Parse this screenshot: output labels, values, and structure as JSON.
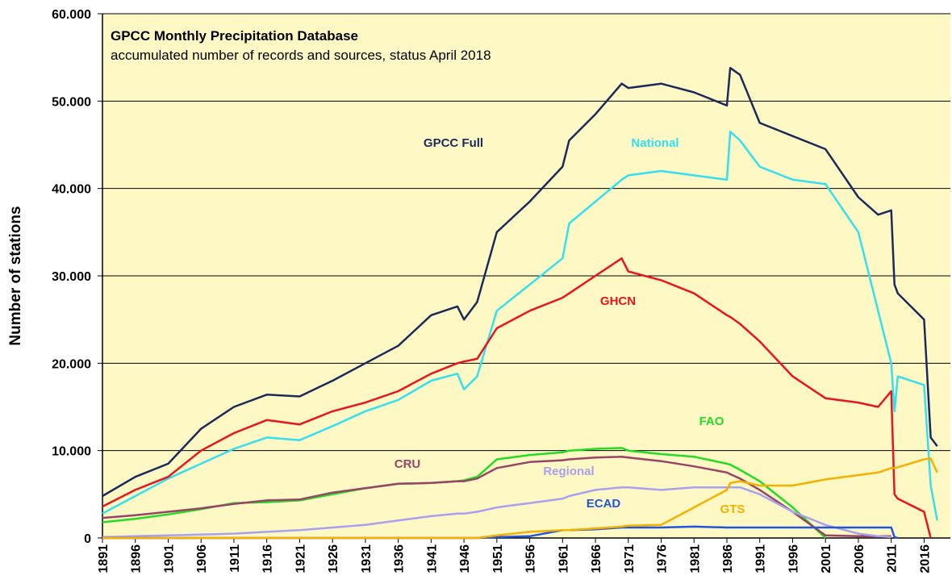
{
  "chart_data": {
    "type": "line",
    "title": "GPCC Monthly Precipitation Database",
    "subtitle": "accumulated number of records and sources, status April 2018",
    "y_label": "Number of stations",
    "x": [
      1891,
      1896,
      1901,
      1906,
      1911,
      1916,
      1921,
      1926,
      1931,
      1936,
      1941,
      1945,
      1946,
      1948,
      1951,
      1956,
      1961,
      1962,
      1966,
      1970,
      1971,
      1976,
      1981,
      1986,
      1986.5,
      1988,
      1991,
      1996,
      2001,
      2006,
      2009,
      2011,
      2011.5,
      2012,
      2016,
      2017,
      2018
    ],
    "xlim": [
      1891,
      2020
    ],
    "xticks": [
      1891,
      1896,
      1901,
      1906,
      1911,
      1916,
      1921,
      1926,
      1931,
      1936,
      1941,
      1946,
      1951,
      1956,
      1961,
      1966,
      1971,
      1976,
      1981,
      1986,
      1991,
      1996,
      2001,
      2006,
      2011,
      2016
    ],
    "ylim": [
      0,
      60000
    ],
    "yticks": [
      0,
      {
        "value": 10000,
        "label": "10.000"
      },
      {
        "value": 20000,
        "label": "20.000"
      },
      {
        "value": 30000,
        "label": "30.000"
      },
      {
        "value": 40000,
        "label": "40.000"
      },
      {
        "value": 50000,
        "label": "50.000"
      },
      {
        "value": 60000,
        "label": "60.000"
      }
    ],
    "grid": true,
    "background": "#fdf8c4",
    "series": [
      {
        "name": "GPCC Full",
        "color": "#1b2a5c",
        "values": [
          4800,
          7000,
          8500,
          12500,
          15000,
          16400,
          16200,
          18000,
          20000,
          22000,
          25500,
          26500,
          25000,
          27000,
          35000,
          38500,
          42500,
          45500,
          48500,
          52000,
          51500,
          52000,
          51000,
          49500,
          53800,
          53000,
          47500,
          46000,
          44500,
          39000,
          37000,
          37500,
          29000,
          28000,
          25000,
          11500,
          10500
        ]
      },
      {
        "name": "National",
        "color": "#33e0f0",
        "values": [
          2800,
          4800,
          6800,
          8500,
          10200,
          11500,
          11200,
          12800,
          14500,
          15800,
          18000,
          18800,
          17000,
          18500,
          26000,
          29000,
          32000,
          36000,
          38500,
          41000,
          41500,
          42000,
          41500,
          41000,
          46500,
          45500,
          42500,
          41000,
          40500,
          35000,
          26000,
          20000,
          14500,
          18500,
          17500,
          6000,
          2000
        ]
      },
      {
        "name": "GHCN",
        "color": "#e8141e",
        "values": [
          3600,
          5500,
          7000,
          10000,
          12000,
          13500,
          13000,
          14500,
          15500,
          16800,
          18800,
          20000,
          20200,
          20500,
          24000,
          26000,
          27500,
          28000,
          30000,
          32000,
          30500,
          29500,
          28000,
          25500,
          25300,
          24500,
          22500,
          18500,
          16000,
          15500,
          15000,
          16800,
          5000,
          4500,
          3000,
          0,
          null
        ]
      },
      {
        "name": "FAO",
        "color": "#22dd22",
        "values": [
          1800,
          2200,
          2700,
          3300,
          4000,
          4100,
          4300,
          5000,
          5700,
          6200,
          6300,
          6500,
          6600,
          7000,
          9000,
          9500,
          9800,
          10000,
          10200,
          10300,
          10000,
          9600,
          9300,
          8500,
          8400,
          7800,
          6500,
          3500,
          0,
          null,
          null,
          null,
          null,
          null,
          null,
          null,
          null
        ]
      },
      {
        "name": "CRU",
        "color": "#994466",
        "values": [
          2300,
          2600,
          3000,
          3400,
          3900,
          4300,
          4400,
          5200,
          5700,
          6200,
          6300,
          6500,
          6500,
          6800,
          8000,
          8700,
          8900,
          9000,
          9200,
          9300,
          9200,
          8800,
          8200,
          7500,
          7300,
          6800,
          5500,
          3000,
          300,
          200,
          200,
          200,
          null,
          null,
          null,
          null,
          null
        ]
      },
      {
        "name": "Regional",
        "color": "#a8a0f0",
        "values": [
          100,
          200,
          300,
          400,
          500,
          700,
          900,
          1200,
          1500,
          2000,
          2500,
          2800,
          2800,
          3000,
          3500,
          4000,
          4500,
          4800,
          5500,
          5800,
          5800,
          5500,
          5800,
          5800,
          5800,
          5800,
          5000,
          3000,
          1500,
          500,
          200,
          100,
          null,
          null,
          null,
          null,
          null
        ]
      },
      {
        "name": "ECAD",
        "color": "#2255dd",
        "values": [
          0,
          0,
          0,
          0,
          0,
          0,
          0,
          0,
          0,
          0,
          0,
          0,
          0,
          0,
          100,
          200,
          900,
          900,
          1000,
          1200,
          1200,
          1200,
          1300,
          1200,
          1200,
          1200,
          1200,
          1200,
          1200,
          1200,
          1200,
          1200,
          100,
          0,
          null,
          null,
          null
        ]
      },
      {
        "name": "GTS",
        "color": "#f5b000",
        "values": [
          0,
          0,
          0,
          0,
          0,
          0,
          0,
          0,
          0,
          0,
          0,
          0,
          0,
          0,
          300,
          700,
          900,
          900,
          1100,
          1300,
          1400,
          1500,
          3500,
          5500,
          6300,
          6500,
          6000,
          6000,
          6700,
          7200,
          7500,
          8000,
          8000,
          8100,
          9000,
          9100,
          7500
        ]
      }
    ]
  }
}
